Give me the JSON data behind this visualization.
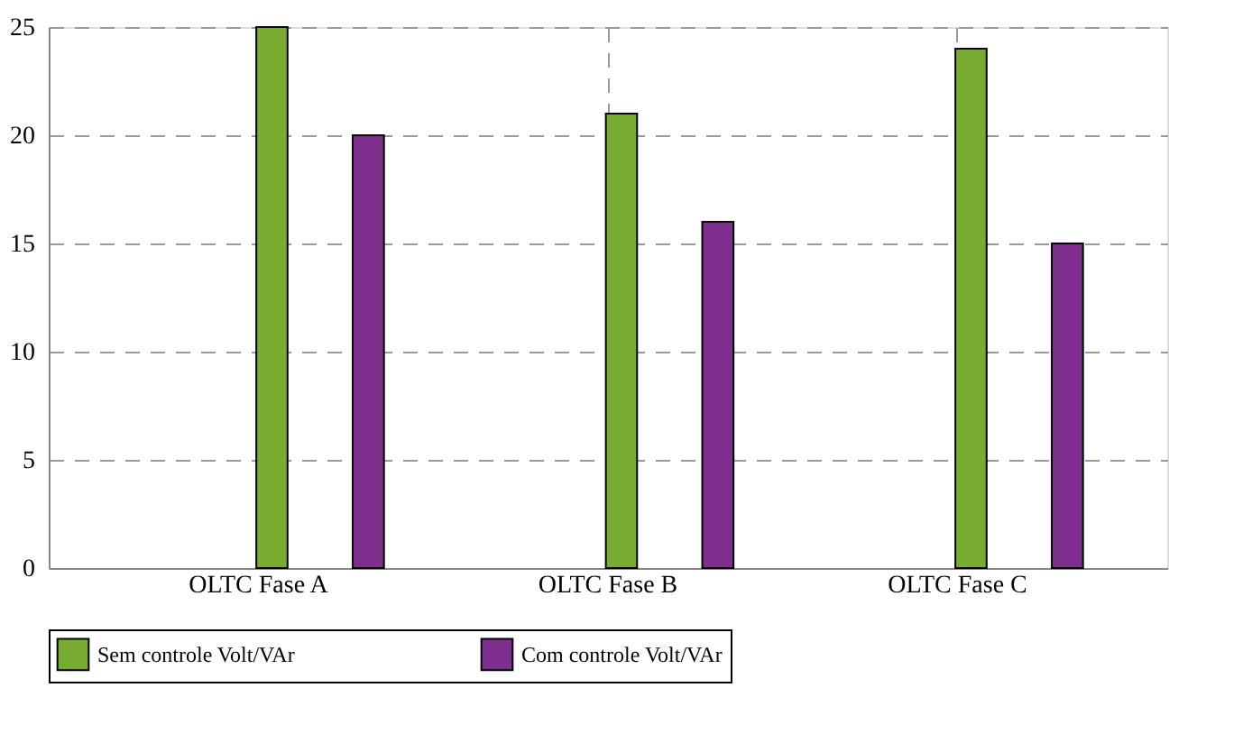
{
  "chart_data": {
    "type": "bar",
    "categories": [
      "OLTC Fase A",
      "OLTC Fase B",
      "OLTC Fase C"
    ],
    "series": [
      {
        "name": "Sem controle Volt/VAr",
        "color": "#77ac30",
        "values": [
          25,
          21,
          24
        ]
      },
      {
        "name": "Com controle Volt/VAr",
        "color": "#7e2f8e",
        "values": [
          20,
          16,
          15
        ]
      }
    ],
    "ylim": [
      0,
      25
    ],
    "yticks": [
      0,
      5,
      10,
      15,
      20,
      25
    ],
    "grid": true,
    "legend": "bottom"
  }
}
